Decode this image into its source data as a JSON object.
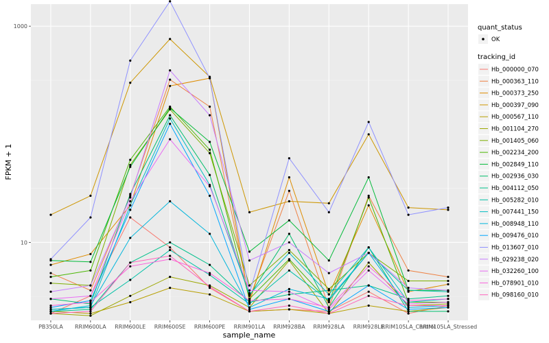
{
  "chart_data": {
    "type": "line",
    "xlabel": "sample_name",
    "ylabel": "FPKM + 1",
    "y_scale": "log10",
    "ylim": [
      1.9,
      1600
    ],
    "y_ticks": [
      10,
      1000
    ],
    "y_tick_labels": [
      "10",
      "1000"
    ],
    "grid": true,
    "legend_position": "right",
    "categories": [
      "PB350LA",
      "RRIM600LA",
      "RRIM600LE",
      "RRIM600SE",
      "RRIM600PE",
      "RRIM901LA",
      "RRIM928BA",
      "RRIM928LA",
      "RRIM928LE",
      "RRIM105LA_Control",
      "RRIM105LA_Stressed"
    ],
    "point_legend": {
      "title": "quant_status",
      "items": [
        "OK"
      ]
    },
    "series_legend_title": "tracking_id",
    "series": [
      {
        "name": "Hb_000000_070",
        "color": "#F8766D",
        "values": [
          2.2,
          3.2,
          17,
          9,
          3.8,
          2.3,
          2.4,
          2.3,
          3.5,
          2.2,
          2.6
        ]
      },
      {
        "name": "Hb_000363_110",
        "color": "#EE8043",
        "values": [
          5.2,
          3.6,
          27,
          320,
          180,
          3.0,
          30,
          2.5,
          27,
          5.5,
          4.8
        ]
      },
      {
        "name": "Hb_000373_250",
        "color": "#DE8C00",
        "values": [
          6.2,
          7.8,
          22,
          280,
          330,
          2.8,
          40,
          3.3,
          22,
          3.5,
          4.1
        ]
      },
      {
        "name": "Hb_000397_090",
        "color": "#CD9600",
        "values": [
          18,
          27,
          300,
          760,
          340,
          19,
          24,
          23,
          100,
          21,
          20
        ]
      },
      {
        "name": "Hb_000567_110",
        "color": "#B79F00",
        "values": [
          2.3,
          2.2,
          2.8,
          3.8,
          3.3,
          2.3,
          2.4,
          2.2,
          2.6,
          2.3,
          2.5
        ]
      },
      {
        "name": "Hb_001104_270",
        "color": "#9CA700",
        "values": [
          2.2,
          2.1,
          3.2,
          4.8,
          4.0,
          2.5,
          6.8,
          2.2,
          6.5,
          2.6,
          2.7
        ]
      },
      {
        "name": "Hb_001405_060",
        "color": "#7CAE00",
        "values": [
          4.2,
          4.0,
          52,
          170,
          67,
          4.0,
          8.5,
          3.7,
          8.0,
          4.4,
          4.4
        ]
      },
      {
        "name": "Hb_002234_200",
        "color": "#49B600",
        "values": [
          4.8,
          5.5,
          58,
          180,
          72,
          3.0,
          7.0,
          2.8,
          26,
          2.8,
          2.8
        ]
      },
      {
        "name": "Hb_002849_110",
        "color": "#00BA38",
        "values": [
          6.8,
          6.6,
          50,
          175,
          85,
          8.2,
          16,
          6.8,
          40,
          3.6,
          3.6
        ]
      },
      {
        "name": "Hb_002936_030",
        "color": "#00BE6C",
        "values": [
          3.0,
          2.7,
          28,
          150,
          42,
          3.2,
          12,
          2.5,
          9.0,
          2.3,
          2.3
        ]
      },
      {
        "name": "Hb_004112_050",
        "color": "#00C08B",
        "values": [
          2.3,
          2.4,
          6.5,
          10,
          6.2,
          2.8,
          3.3,
          3.6,
          4.0,
          3.0,
          3.2
        ]
      },
      {
        "name": "Hb_005282_010",
        "color": "#00C0A6",
        "values": [
          2.4,
          2.5,
          4.5,
          8.5,
          5.0,
          2.7,
          5.5,
          2.9,
          8.0,
          3.6,
          3.5
        ]
      },
      {
        "name": "Hb_007441_150",
        "color": "#00BDC1",
        "values": [
          2.4,
          2.5,
          22,
          140,
          34,
          3.3,
          8.0,
          3.3,
          9.0,
          2.8,
          3.0
        ]
      },
      {
        "name": "Hb_008948_110",
        "color": "#00B5DB",
        "values": [
          2.3,
          2.6,
          11,
          24,
          12,
          2.5,
          3.7,
          3.0,
          8.0,
          2.5,
          2.6
        ]
      },
      {
        "name": "Hb_009476_010",
        "color": "#00A5FF",
        "values": [
          2.5,
          2.9,
          20,
          125,
          27,
          2.4,
          3.0,
          2.3,
          4.0,
          2.4,
          2.5
        ]
      },
      {
        "name": "Hb_013607_010",
        "color": "#8F91FF",
        "values": [
          7.0,
          17,
          480,
          1700,
          330,
          3.4,
          60,
          19,
          130,
          18,
          21
        ]
      },
      {
        "name": "Hb_029238_020",
        "color": "#C77CFF",
        "values": [
          3.5,
          4.0,
          26,
          390,
          150,
          6.8,
          10,
          5.2,
          8.0,
          3.8,
          3.6
        ]
      },
      {
        "name": "Hb_032260_100",
        "color": "#E76BF3",
        "values": [
          3.0,
          3.2,
          24,
          90,
          33,
          3.6,
          3.5,
          2.4,
          5.5,
          2.7,
          2.8
        ]
      },
      {
        "name": "Hb_078901_010",
        "color": "#FA62DB",
        "values": [
          2.6,
          2.8,
          6.0,
          7.0,
          5.2,
          2.9,
          3.0,
          2.5,
          6.0,
          2.9,
          3.0
        ]
      },
      {
        "name": "Hb_098160_010",
        "color": "#FF62BC",
        "values": [
          2.2,
          2.3,
          6.5,
          7.5,
          3.9,
          2.3,
          2.6,
          2.2,
          3.2,
          2.6,
          2.6
        ]
      }
    ]
  }
}
